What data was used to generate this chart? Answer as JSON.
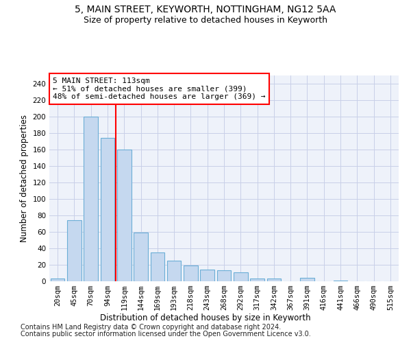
{
  "title1": "5, MAIN STREET, KEYWORTH, NOTTINGHAM, NG12 5AA",
  "title2": "Size of property relative to detached houses in Keyworth",
  "xlabel": "Distribution of detached houses by size in Keyworth",
  "ylabel": "Number of detached properties",
  "footnote1": "Contains HM Land Registry data © Crown copyright and database right 2024.",
  "footnote2": "Contains public sector information licensed under the Open Government Licence v3.0.",
  "annotation_line1": "5 MAIN STREET: 113sqm",
  "annotation_line2": "← 51% of detached houses are smaller (399)",
  "annotation_line3": "48% of semi-detached houses are larger (369) →",
  "bar_color": "#c5d8ef",
  "bar_edge_color": "#6baed6",
  "vline_color": "red",
  "vline_x": 3.5,
  "categories": [
    "20sqm",
    "45sqm",
    "70sqm",
    "94sqm",
    "119sqm",
    "144sqm",
    "169sqm",
    "193sqm",
    "218sqm",
    "243sqm",
    "268sqm",
    "292sqm",
    "317sqm",
    "342sqm",
    "367sqm",
    "391sqm",
    "416sqm",
    "441sqm",
    "466sqm",
    "490sqm",
    "515sqm"
  ],
  "values": [
    3,
    74,
    200,
    174,
    160,
    59,
    35,
    25,
    19,
    14,
    13,
    11,
    3,
    3,
    0,
    4,
    0,
    1,
    0,
    0,
    0
  ],
  "ylim": [
    0,
    250
  ],
  "yticks": [
    0,
    20,
    40,
    60,
    80,
    100,
    120,
    140,
    160,
    180,
    200,
    220,
    240
  ],
  "background_color": "#eef2fa",
  "grid_color": "#c8cfe8",
  "title1_fontsize": 10,
  "title2_fontsize": 9,
  "axis_label_fontsize": 8.5,
  "tick_fontsize": 7.5,
  "annotation_fontsize": 8,
  "footnote_fontsize": 7
}
